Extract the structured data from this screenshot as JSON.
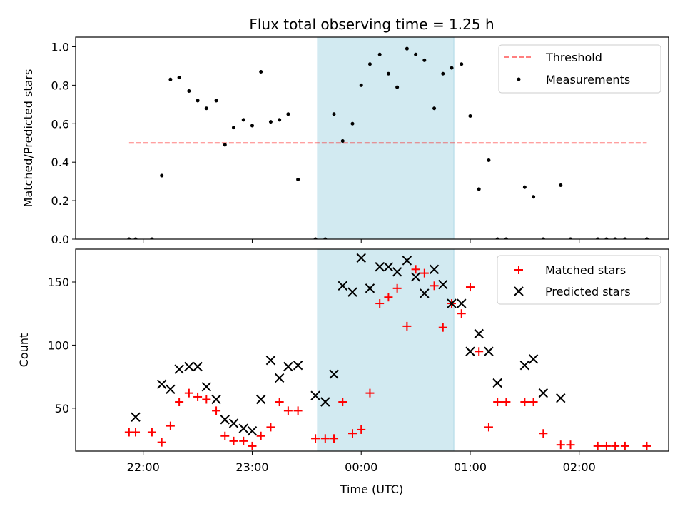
{
  "chart_data": [
    {
      "type": "scatter",
      "title": "Flux total observing time = 1.25 h",
      "xlabel": "",
      "ylabel": "Matched/Predicted stars",
      "xlim_hours": [
        21.38,
        26.82
      ],
      "ylim": [
        0,
        1.05
      ],
      "y_ticks": [
        0.0,
        0.2,
        0.4,
        0.6,
        0.8,
        1.0
      ],
      "y_tick_labels": [
        "0.0",
        "0.2",
        "0.4",
        "0.6",
        "0.8",
        "1.0"
      ],
      "shaded_span_hours": [
        23.6,
        24.85
      ],
      "shaded_color": "#add8e6",
      "legend_position": "top-right",
      "threshold": {
        "name": "Threshold",
        "value": 0.5,
        "x_hours": [
          21.87,
          26.62
        ],
        "color": "#ff0000",
        "style": "dashed"
      },
      "series": [
        {
          "name": "Measurements",
          "marker": "dot",
          "color": "#000000",
          "x_hours": [
            21.87,
            21.93,
            22.08,
            22.17,
            22.25,
            22.33,
            22.42,
            22.5,
            22.58,
            22.67,
            22.75,
            22.83,
            22.92,
            23.0,
            23.08,
            23.17,
            23.25,
            23.33,
            23.42,
            23.58,
            23.67,
            23.75,
            23.83,
            23.92,
            24.0,
            24.08,
            24.17,
            24.25,
            24.33,
            24.42,
            24.5,
            24.58,
            24.67,
            24.75,
            24.83,
            24.92,
            25.0,
            25.08,
            25.17,
            25.25,
            25.33,
            25.5,
            25.58,
            25.67,
            25.83,
            25.92,
            26.17,
            26.25,
            26.33,
            26.42,
            26.62,
            26.62
          ],
          "values": [
            0.0,
            0.0,
            0.0,
            0.33,
            0.83,
            0.84,
            0.77,
            0.72,
            0.68,
            0.72,
            0.49,
            0.58,
            0.62,
            0.59,
            0.87,
            0.61,
            0.62,
            0.65,
            0.31,
            0.0,
            0.0,
            0.65,
            0.51,
            0.6,
            0.8,
            0.91,
            0.96,
            0.86,
            0.79,
            0.99,
            0.96,
            0.93,
            0.68,
            0.86,
            0.89,
            0.91,
            0.64,
            0.26,
            0.41,
            0.0,
            0.0,
            0.27,
            0.22,
            0.0,
            0.28,
            0.0,
            0.0,
            0.0,
            0.0,
            0.0,
            0.0,
            0.0
          ]
        }
      ]
    },
    {
      "type": "scatter",
      "title": "",
      "xlabel": "Time (UTC)",
      "ylabel": "Count",
      "xlim_hours": [
        21.38,
        26.82
      ],
      "ylim": [
        16,
        176
      ],
      "y_ticks": [
        50,
        100,
        150
      ],
      "y_tick_labels": [
        "50",
        "100",
        "150"
      ],
      "x_ticks_hours": [
        22,
        23,
        24,
        25,
        26
      ],
      "x_tick_labels": [
        "22:00",
        "23:00",
        "00:00",
        "01:00",
        "02:00"
      ],
      "shaded_span_hours": [
        23.6,
        24.85
      ],
      "shaded_color": "#add8e6",
      "legend_position": "top-right",
      "series": [
        {
          "name": "Matched stars",
          "marker": "plus",
          "color": "#ff0000",
          "x_hours": [
            21.87,
            21.93,
            22.08,
            22.17,
            22.25,
            22.33,
            22.42,
            22.5,
            22.58,
            22.67,
            22.75,
            22.83,
            22.92,
            23.0,
            23.08,
            23.17,
            23.25,
            23.33,
            23.42,
            23.58,
            23.67,
            23.75,
            23.83,
            23.92,
            24.0,
            24.08,
            24.17,
            24.25,
            24.33,
            24.42,
            24.5,
            24.58,
            24.67,
            24.75,
            24.83,
            24.92,
            25.0,
            25.08,
            25.17,
            25.25,
            25.33,
            25.5,
            25.58,
            25.67,
            25.83,
            25.92,
            26.17,
            26.25,
            26.33,
            26.42,
            26.62
          ],
          "values": [
            31,
            31,
            31,
            23,
            36,
            55,
            62,
            59,
            57,
            48,
            28,
            24,
            24,
            20,
            28,
            35,
            55,
            48,
            48,
            26,
            26,
            26,
            55,
            30,
            33,
            62,
            133,
            138,
            145,
            115,
            160,
            157,
            147,
            114,
            133,
            125,
            146,
            95,
            35,
            55,
            55,
            55,
            55,
            30,
            21,
            21,
            20,
            20,
            20,
            20,
            20
          ]
        },
        {
          "name": "Predicted stars",
          "marker": "x",
          "color": "#000000",
          "x_hours": [
            21.93,
            22.17,
            22.25,
            22.33,
            22.42,
            22.5,
            22.58,
            22.67,
            22.75,
            22.83,
            22.92,
            23.0,
            23.08,
            23.17,
            23.25,
            23.33,
            23.42,
            23.58,
            23.67,
            23.75,
            23.83,
            23.92,
            24.0,
            24.08,
            24.17,
            24.25,
            24.33,
            24.42,
            24.5,
            24.58,
            24.67,
            24.75,
            24.83,
            24.92,
            25.0,
            25.08,
            25.17,
            25.25,
            25.5,
            25.58,
            25.67,
            25.83
          ],
          "values": [
            43,
            69,
            65,
            81,
            83,
            83,
            67,
            57,
            41,
            38,
            34,
            32,
            57,
            88,
            74,
            83,
            84,
            60,
            55,
            77,
            147,
            142,
            169,
            145,
            162,
            162,
            158,
            167,
            154,
            141,
            160,
            148,
            133,
            133,
            95,
            109,
            95,
            70,
            84,
            89,
            62,
            58
          ]
        }
      ]
    }
  ]
}
